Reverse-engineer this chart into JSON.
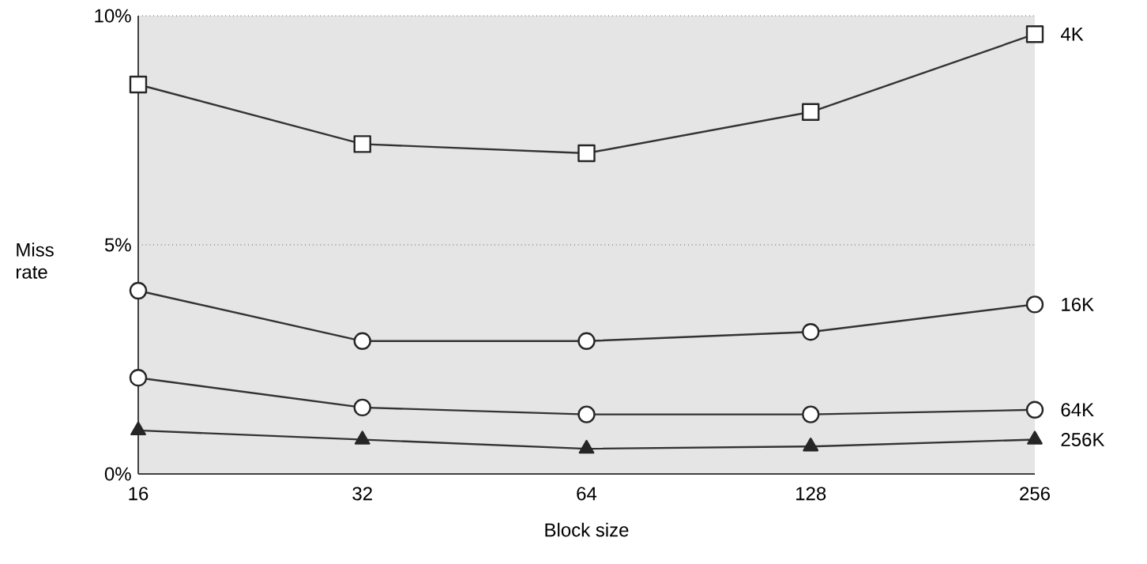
{
  "chart_data": {
    "type": "line",
    "xlabel": "Block size",
    "ylabel": "Miss rate",
    "categories": [
      "16",
      "32",
      "64",
      "128",
      "256"
    ],
    "series": [
      {
        "name": "4K",
        "color": "#333333",
        "marker": "square",
        "values": [
          8.5,
          7.2,
          7.0,
          7.9,
          9.6
        ]
      },
      {
        "name": "16K",
        "color": "#333333",
        "marker": "circle",
        "values": [
          4.0,
          2.9,
          2.9,
          3.1,
          3.7
        ]
      },
      {
        "name": "64K",
        "color": "#333333",
        "marker": "circle",
        "values": [
          2.1,
          1.45,
          1.3,
          1.3,
          1.4
        ]
      },
      {
        "name": "256K",
        "color": "#333333",
        "marker": "triangle",
        "values": [
          0.95,
          0.75,
          0.55,
          0.6,
          0.75
        ]
      }
    ],
    "ylim": [
      0,
      10
    ],
    "yticks": [
      {
        "value": 0,
        "label": "0%"
      },
      {
        "value": 5,
        "label": "5%"
      },
      {
        "value": 10,
        "label": "10%"
      }
    ],
    "grid": "y",
    "line_style": "solid",
    "legend": "right"
  }
}
